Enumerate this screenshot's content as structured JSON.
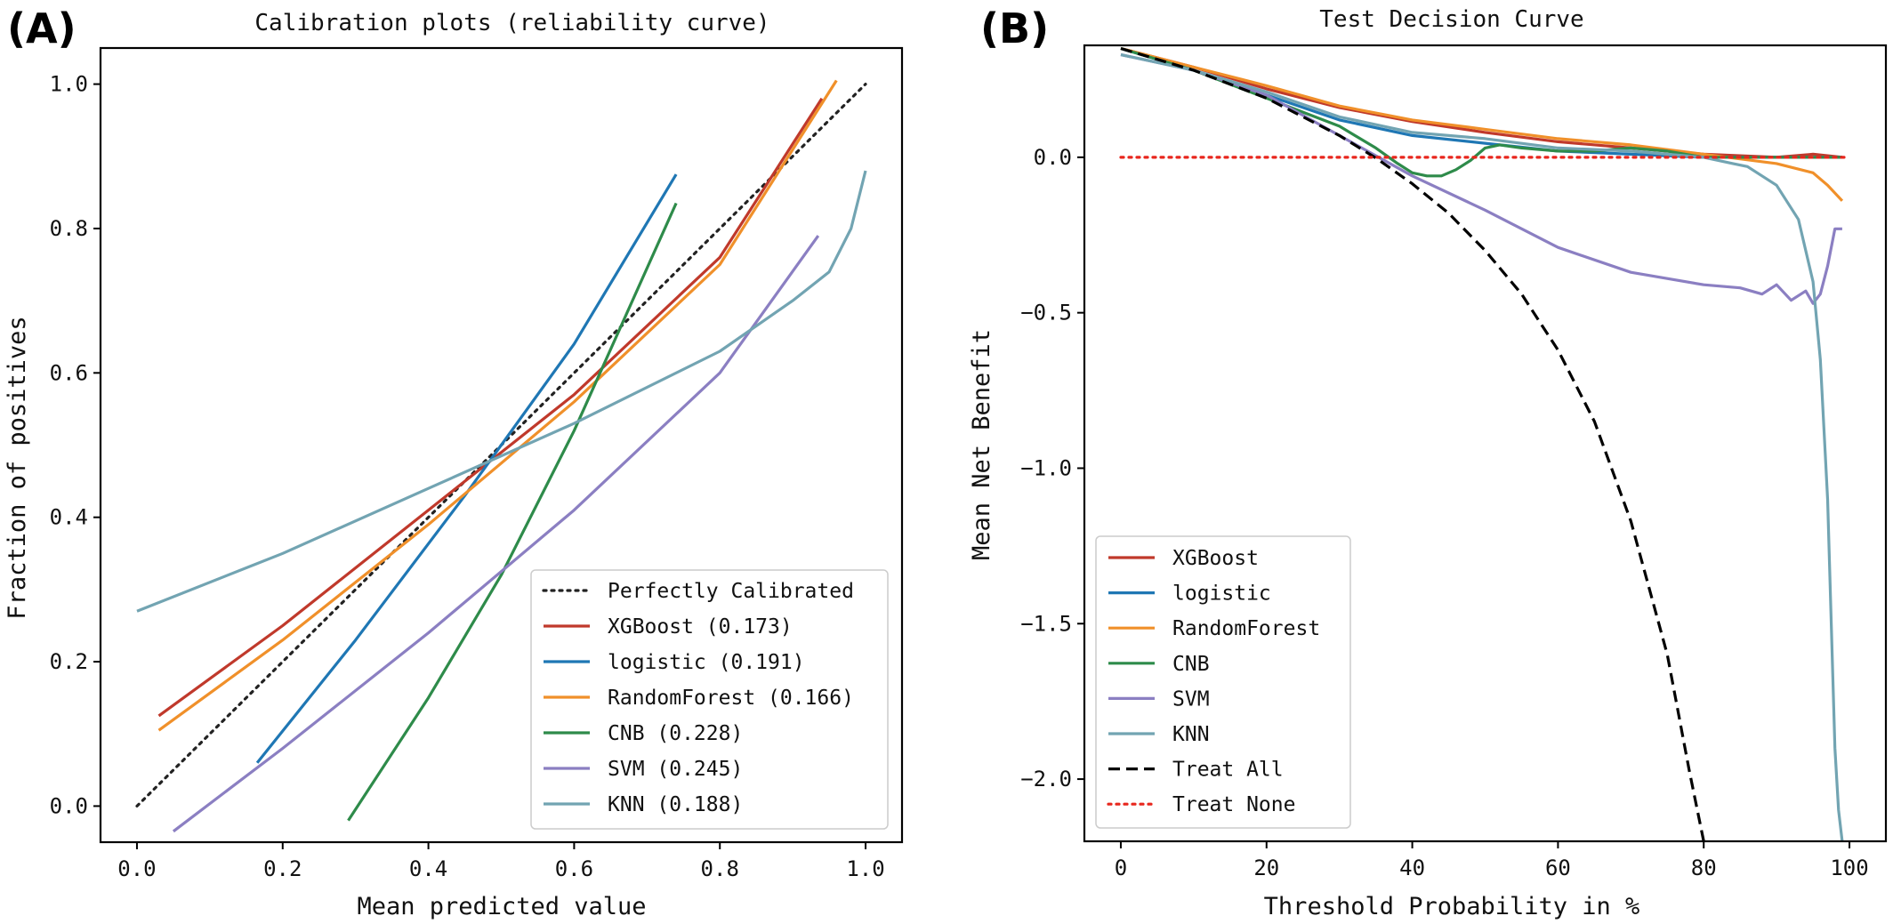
{
  "chart_data": [
    {
      "type": "line",
      "panel_label": "(A)",
      "title": "Calibration plots  (reliability curve)",
      "xlabel": "Mean predicted value",
      "ylabel": "Fraction of positives",
      "xlim": [
        -0.05,
        1.05
      ],
      "ylim": [
        -0.05,
        1.05
      ],
      "xticks": [
        0.0,
        0.2,
        0.4,
        0.6,
        0.8,
        1.0
      ],
      "xtick_labels": [
        "0.0",
        "0.2",
        "0.4",
        "0.6",
        "0.8",
        "1.0"
      ],
      "yticks": [
        0.0,
        0.2,
        0.4,
        0.6,
        0.8,
        1.0
      ],
      "ytick_labels": [
        "0.0",
        "0.2",
        "0.4",
        "0.6",
        "0.8",
        "1.0"
      ],
      "grid": false,
      "legend_position": "lower-right",
      "series": [
        {
          "name": "Perfectly Calibrated",
          "style": "dotted",
          "color": "#222222",
          "x": [
            0.0,
            1.0
          ],
          "y": [
            0.0,
            1.0
          ]
        },
        {
          "name": "XGBoost (0.173)",
          "style": "solid",
          "color": "#c0392b",
          "x": [
            0.03,
            0.2,
            0.4,
            0.6,
            0.8,
            0.94
          ],
          "y": [
            0.125,
            0.25,
            0.41,
            0.57,
            0.76,
            0.98
          ]
        },
        {
          "name": "logistic (0.191)",
          "style": "solid",
          "color": "#1f77b4",
          "x": [
            0.165,
            0.3,
            0.45,
            0.6,
            0.74
          ],
          "y": [
            0.06,
            0.23,
            0.43,
            0.64,
            0.875
          ]
        },
        {
          "name": "RandomForest (0.166)",
          "style": "solid",
          "color": "#f0902a",
          "x": [
            0.03,
            0.2,
            0.4,
            0.6,
            0.8,
            0.96
          ],
          "y": [
            0.105,
            0.23,
            0.39,
            0.56,
            0.75,
            1.005
          ]
        },
        {
          "name": "CNB (0.228)",
          "style": "solid",
          "color": "#2e8b4a",
          "x": [
            0.29,
            0.4,
            0.5,
            0.6,
            0.74
          ],
          "y": [
            -0.02,
            0.15,
            0.32,
            0.52,
            0.835
          ]
        },
        {
          "name": "SVM (0.245)",
          "style": "solid",
          "color": "#8b7fc2",
          "x": [
            0.05,
            0.2,
            0.4,
            0.6,
            0.8,
            0.935
          ],
          "y": [
            -0.035,
            0.08,
            0.24,
            0.41,
            0.6,
            0.79
          ]
        },
        {
          "name": "KNN (0.188)",
          "style": "solid",
          "color": "#72a4b2",
          "x": [
            0.0,
            0.2,
            0.4,
            0.6,
            0.8,
            0.9,
            0.95,
            0.98,
            1.0
          ],
          "y": [
            0.27,
            0.35,
            0.44,
            0.53,
            0.63,
            0.7,
            0.74,
            0.8,
            0.88
          ]
        }
      ]
    },
    {
      "type": "line",
      "panel_label": "(B)",
      "title": "Test Decision Curve",
      "xlabel": "Threshold Probability in %",
      "ylabel": "Mean Net Benefit",
      "xlim": [
        -5,
        105
      ],
      "ylim": [
        -2.2,
        0.36
      ],
      "xticks": [
        0,
        20,
        40,
        60,
        80,
        100
      ],
      "xtick_labels": [
        "0",
        "20",
        "40",
        "60",
        "80",
        "100"
      ],
      "yticks": [
        0.0,
        -0.5,
        -1.0,
        -1.5,
        -2.0
      ],
      "ytick_labels": [
        "0.0",
        "−0.5",
        "−1.0",
        "−1.5",
        "−2.0"
      ],
      "grid": false,
      "legend_position": "lower-left",
      "series": [
        {
          "name": "XGBoost",
          "style": "solid",
          "color": "#c0392b",
          "x": [
            0,
            10,
            20,
            30,
            40,
            50,
            60,
            70,
            80,
            90,
            95,
            99
          ],
          "y": [
            0.35,
            0.29,
            0.22,
            0.16,
            0.115,
            0.08,
            0.05,
            0.03,
            0.01,
            0.0,
            0.01,
            0.0
          ]
        },
        {
          "name": "logistic",
          "style": "solid",
          "color": "#1f77b4",
          "x": [
            0,
            10,
            20,
            30,
            40,
            50,
            60,
            70,
            80,
            90,
            99
          ],
          "y": [
            0.35,
            0.28,
            0.2,
            0.12,
            0.07,
            0.045,
            0.02,
            0.01,
            0.0,
            0.0,
            0.0
          ]
        },
        {
          "name": "RandomForest",
          "style": "solid",
          "color": "#f0902a",
          "x": [
            0,
            10,
            20,
            30,
            40,
            50,
            60,
            70,
            80,
            90,
            95,
            97,
            99
          ],
          "y": [
            0.35,
            0.29,
            0.23,
            0.165,
            0.12,
            0.09,
            0.06,
            0.04,
            0.01,
            -0.02,
            -0.05,
            -0.09,
            -0.14
          ]
        },
        {
          "name": "CNB",
          "style": "solid",
          "color": "#2e8b4a",
          "x": [
            0,
            10,
            20,
            30,
            35,
            38,
            40,
            42,
            44,
            46,
            48,
            50,
            52,
            55,
            60,
            65,
            70,
            75,
            80,
            85,
            90,
            99
          ],
          "y": [
            0.35,
            0.28,
            0.19,
            0.1,
            0.03,
            -0.02,
            -0.05,
            -0.06,
            -0.06,
            -0.04,
            -0.01,
            0.03,
            0.04,
            0.03,
            0.02,
            0.02,
            0.03,
            0.02,
            0.0,
            0.0,
            0.0,
            0.0
          ]
        },
        {
          "name": "SVM",
          "style": "solid",
          "color": "#8b7fc2",
          "x": [
            0,
            10,
            20,
            30,
            40,
            50,
            60,
            70,
            80,
            85,
            88,
            90,
            92,
            94,
            95,
            96,
            97,
            98,
            99
          ],
          "y": [
            0.33,
            0.28,
            0.2,
            0.07,
            -0.06,
            -0.17,
            -0.29,
            -0.37,
            -0.41,
            -0.42,
            -0.44,
            -0.41,
            -0.46,
            -0.43,
            -0.47,
            -0.44,
            -0.35,
            -0.23,
            -0.23
          ]
        },
        {
          "name": "KNN",
          "style": "solid",
          "color": "#72a4b2",
          "x": [
            0,
            10,
            20,
            30,
            40,
            50,
            60,
            70,
            80,
            84,
            86,
            90,
            93,
            95,
            96,
            97,
            97.5,
            98,
            98.5,
            99
          ],
          "y": [
            0.33,
            0.28,
            0.21,
            0.13,
            0.08,
            0.06,
            0.03,
            0.02,
            0.0,
            -0.02,
            -0.03,
            -0.09,
            -0.2,
            -0.4,
            -0.65,
            -1.1,
            -1.5,
            -1.9,
            -2.1,
            -2.2
          ]
        },
        {
          "name": "Treat All",
          "style": "dashed",
          "color": "#000000",
          "x": [
            0,
            10,
            20,
            30,
            35,
            40,
            45,
            50,
            55,
            60,
            65,
            70,
            75,
            78,
            80
          ],
          "y": [
            0.35,
            0.28,
            0.19,
            0.07,
            -0.002,
            -0.085,
            -0.18,
            -0.3,
            -0.44,
            -0.62,
            -0.85,
            -1.17,
            -1.6,
            -1.97,
            -2.2
          ]
        },
        {
          "name": "Treat None",
          "style": "dotted",
          "color": "#e8261d",
          "x": [
            0,
            100
          ],
          "y": [
            0.0,
            0.0
          ]
        }
      ]
    }
  ]
}
